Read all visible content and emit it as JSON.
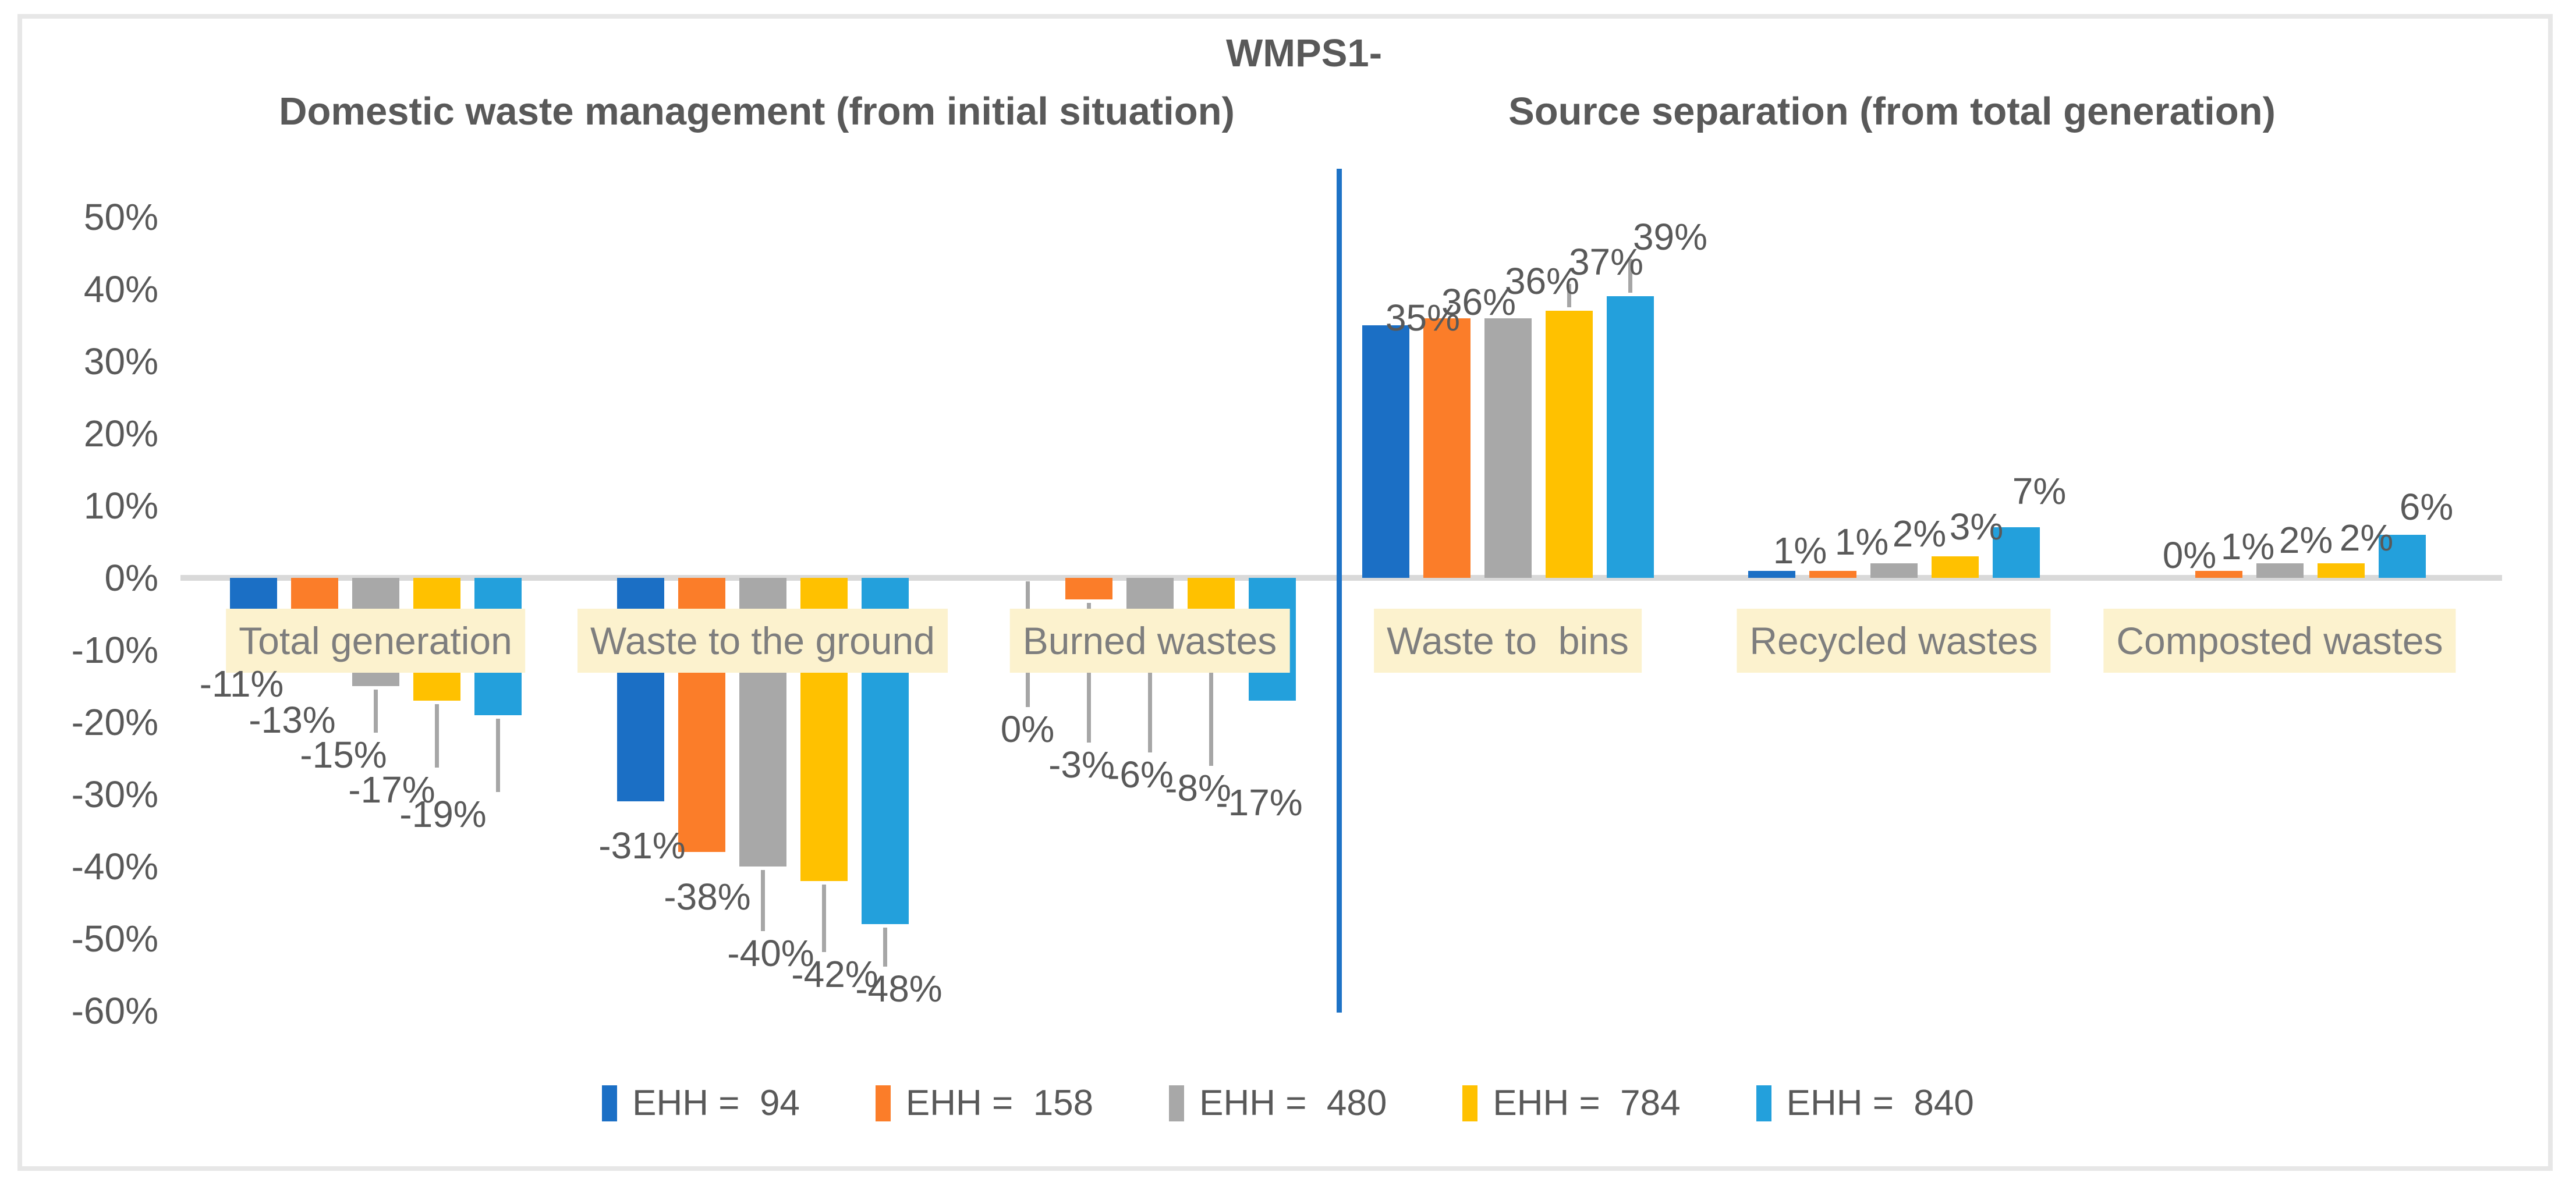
{
  "header": {
    "title": "WMPS1-"
  },
  "sections": [
    {
      "label": "Domestic waste management (from initial situation)"
    },
    {
      "label": "Source separation (from total generation)"
    }
  ],
  "chart_data": {
    "type": "bar",
    "title": "WMPS1-",
    "panel_titles": [
      "Domestic waste management (from initial situation)",
      "Source separation (from total generation)"
    ],
    "categories": [
      "Total generation",
      "Waste to the ground",
      "Burned wastes",
      "Waste to  bins",
      "Recycled wastes",
      "Composted wastes"
    ],
    "series": [
      {
        "name": "EHH =  94",
        "color": "#1B6FC5",
        "values": [
          -11,
          -31,
          0,
          35,
          1,
          0
        ]
      },
      {
        "name": "EHH =  158",
        "color": "#FB7D29",
        "values": [
          -13,
          -38,
          -3,
          36,
          1,
          1
        ]
      },
      {
        "name": "EHH =  480",
        "color": "#A8A8A8",
        "values": [
          -15,
          -40,
          -6,
          36,
          2,
          2
        ]
      },
      {
        "name": "EHH =  784",
        "color": "#FFC100",
        "values": [
          -17,
          -42,
          -8,
          37,
          3,
          2
        ]
      },
      {
        "name": "EHH =  840",
        "color": "#23A0DC",
        "values": [
          -19,
          -48,
          -17,
          39,
          7,
          6
        ]
      }
    ],
    "data_labels": [
      [
        "-11%",
        "-13%",
        "-15%",
        "-17%",
        "-19%"
      ],
      [
        "-31%",
        "-38%",
        "-40%",
        "-42%",
        "-48%"
      ],
      [
        "0%",
        "-3%",
        "-6%",
        "-8%",
        "-17%"
      ],
      [
        "35%",
        "36%",
        "36%",
        "37%",
        "39%"
      ],
      [
        "1%",
        "1%",
        "2%",
        "3%",
        "7%"
      ],
      [
        "0%",
        "1%",
        "2%",
        "2%",
        "6%"
      ]
    ],
    "y_axis": {
      "tick_labels": [
        "50%",
        "40%",
        "30%",
        "20%",
        "10%",
        "0%",
        "-10%",
        "-20%",
        "-30%",
        "-40%",
        "-50%",
        "-60%"
      ],
      "max": 50,
      "min": -60,
      "step": 10,
      "gridline_at_zero": true
    },
    "legend_position": "bottom",
    "styles": {
      "divider_color": "#1E73C6",
      "gridline_color": "#D9D9D9",
      "leader_line_color": "#A6A6A6",
      "category_label_bg": "#FCF2CE",
      "text_color": "#595959",
      "category_text_color": "#7E7E7E"
    }
  }
}
